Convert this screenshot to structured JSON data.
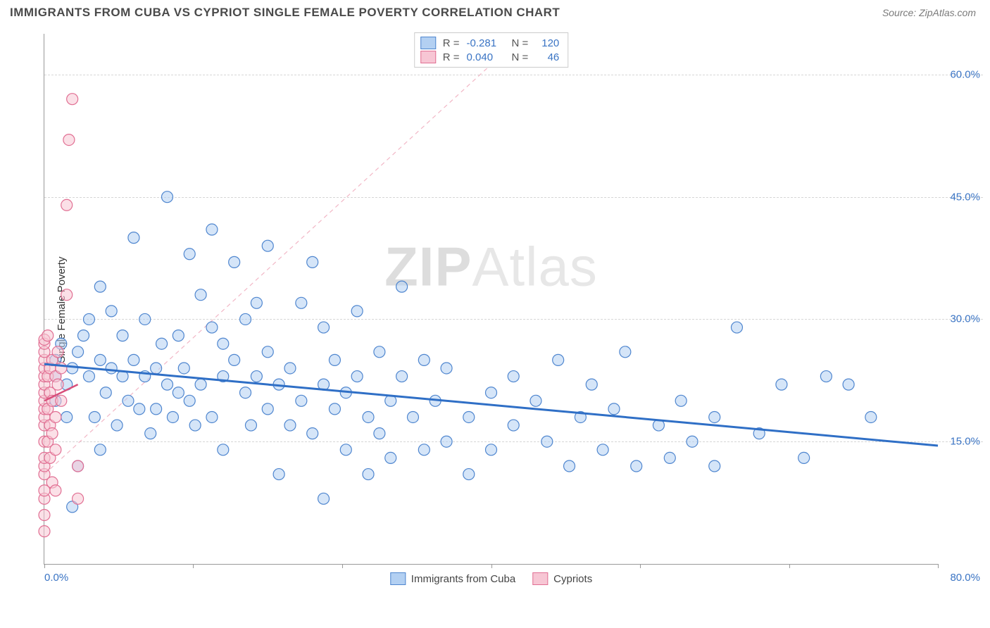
{
  "header": {
    "title": "IMMIGRANTS FROM CUBA VS CYPRIOT SINGLE FEMALE POVERTY CORRELATION CHART",
    "source_prefix": "Source: ",
    "source_name": "ZipAtlas.com"
  },
  "watermark": {
    "part1": "ZIP",
    "part2": "Atlas"
  },
  "chart": {
    "type": "scatter",
    "ylabel": "Single Female Poverty",
    "xlim": [
      0,
      80
    ],
    "ylim": [
      0,
      65
    ],
    "x_tick_positions": [
      0,
      13.33,
      26.67,
      40,
      53.33,
      66.67,
      80
    ],
    "x_tick_labels_shown": {
      "min": "0.0%",
      "max": "80.0%"
    },
    "y_gridlines": [
      15,
      30,
      45,
      60
    ],
    "y_tick_labels": [
      "15.0%",
      "30.0%",
      "45.0%",
      "60.0%"
    ],
    "background_color": "#ffffff",
    "grid_color": "#d6d6d6",
    "axis_color": "#999999",
    "tick_label_color": "#3a74c4",
    "marker_radius": 8,
    "marker_stroke_width": 1.2,
    "series": [
      {
        "id": "cuba",
        "label": "Immigrants from Cuba",
        "fill": "#b3d0f2",
        "stroke": "#4f86cf",
        "fill_opacity": 0.55,
        "R": -0.281,
        "N": 120,
        "trend": {
          "x1": 0,
          "y1": 24.5,
          "x2": 80,
          "y2": 14.5,
          "color": "#2f6fc6",
          "width": 3,
          "dash": "none"
        },
        "extrapolation": {
          "x1": 0,
          "y1": 11,
          "x2": 43,
          "y2": 65,
          "color": "#f2b7c6",
          "width": 1.2,
          "dash": "6,5"
        },
        "points": [
          [
            1,
            23
          ],
          [
            1,
            25
          ],
          [
            1,
            20
          ],
          [
            1.5,
            27
          ],
          [
            2,
            22
          ],
          [
            2,
            18
          ],
          [
            2.5,
            7
          ],
          [
            2.5,
            24
          ],
          [
            3,
            26
          ],
          [
            3,
            12
          ],
          [
            3.5,
            28
          ],
          [
            4,
            23
          ],
          [
            4,
            30
          ],
          [
            4.5,
            18
          ],
          [
            5,
            25
          ],
          [
            5,
            34
          ],
          [
            5,
            14
          ],
          [
            5.5,
            21
          ],
          [
            6,
            24
          ],
          [
            6,
            31
          ],
          [
            6.5,
            17
          ],
          [
            7,
            23
          ],
          [
            7,
            28
          ],
          [
            7.5,
            20
          ],
          [
            8,
            25
          ],
          [
            8,
            40
          ],
          [
            8.5,
            19
          ],
          [
            9,
            23
          ],
          [
            9,
            30
          ],
          [
            9.5,
            16
          ],
          [
            10,
            24
          ],
          [
            10,
            19
          ],
          [
            10.5,
            27
          ],
          [
            11,
            22
          ],
          [
            11,
            45
          ],
          [
            11.5,
            18
          ],
          [
            12,
            28
          ],
          [
            12,
            21
          ],
          [
            12.5,
            24
          ],
          [
            13,
            20
          ],
          [
            13,
            38
          ],
          [
            13.5,
            17
          ],
          [
            14,
            33
          ],
          [
            14,
            22
          ],
          [
            15,
            29
          ],
          [
            15,
            18
          ],
          [
            15,
            41
          ],
          [
            16,
            23
          ],
          [
            16,
            27
          ],
          [
            16,
            14
          ],
          [
            17,
            25
          ],
          [
            17,
            37
          ],
          [
            18,
            21
          ],
          [
            18,
            30
          ],
          [
            18.5,
            17
          ],
          [
            19,
            23
          ],
          [
            19,
            32
          ],
          [
            20,
            19
          ],
          [
            20,
            26
          ],
          [
            20,
            39
          ],
          [
            21,
            22
          ],
          [
            21,
            11
          ],
          [
            22,
            24
          ],
          [
            22,
            17
          ],
          [
            23,
            32
          ],
          [
            23,
            20
          ],
          [
            24,
            37
          ],
          [
            24,
            16
          ],
          [
            25,
            22
          ],
          [
            25,
            29
          ],
          [
            25,
            8
          ],
          [
            26,
            19
          ],
          [
            26,
            25
          ],
          [
            27,
            21
          ],
          [
            27,
            14
          ],
          [
            28,
            23
          ],
          [
            28,
            31
          ],
          [
            29,
            18
          ],
          [
            29,
            11
          ],
          [
            30,
            26
          ],
          [
            30,
            16
          ],
          [
            31,
            20
          ],
          [
            31,
            13
          ],
          [
            32,
            23
          ],
          [
            32,
            34
          ],
          [
            33,
            18
          ],
          [
            34,
            25
          ],
          [
            34,
            14
          ],
          [
            35,
            20
          ],
          [
            36,
            15
          ],
          [
            36,
            24
          ],
          [
            38,
            18
          ],
          [
            38,
            11
          ],
          [
            40,
            21
          ],
          [
            40,
            14
          ],
          [
            42,
            23
          ],
          [
            42,
            17
          ],
          [
            44,
            20
          ],
          [
            45,
            15
          ],
          [
            46,
            25
          ],
          [
            47,
            12
          ],
          [
            48,
            18
          ],
          [
            49,
            22
          ],
          [
            50,
            14
          ],
          [
            51,
            19
          ],
          [
            52,
            26
          ],
          [
            53,
            12
          ],
          [
            55,
            17
          ],
          [
            56,
            13
          ],
          [
            57,
            20
          ],
          [
            58,
            15
          ],
          [
            60,
            18
          ],
          [
            60,
            12
          ],
          [
            62,
            29
          ],
          [
            64,
            16
          ],
          [
            66,
            22
          ],
          [
            68,
            13
          ],
          [
            70,
            23
          ],
          [
            72,
            22
          ],
          [
            74,
            18
          ]
        ]
      },
      {
        "id": "cypriot",
        "label": "Cypriots",
        "fill": "#f7c6d4",
        "stroke": "#e16f93",
        "fill_opacity": 0.55,
        "R": 0.04,
        "N": 46,
        "trend": {
          "x1": 0,
          "y1": 20,
          "x2": 3,
          "y2": 22,
          "color": "#d94f7a",
          "width": 2.5,
          "dash": "none"
        },
        "points": [
          [
            0,
            4
          ],
          [
            0,
            6
          ],
          [
            0,
            8
          ],
          [
            0,
            9
          ],
          [
            0,
            11
          ],
          [
            0,
            12
          ],
          [
            0,
            13
          ],
          [
            0,
            15
          ],
          [
            0,
            17
          ],
          [
            0,
            18
          ],
          [
            0,
            19
          ],
          [
            0,
            20
          ],
          [
            0,
            21
          ],
          [
            0,
            22
          ],
          [
            0,
            23
          ],
          [
            0,
            24
          ],
          [
            0,
            25
          ],
          [
            0,
            26
          ],
          [
            0,
            27
          ],
          [
            0,
            27.5
          ],
          [
            0.3,
            28
          ],
          [
            0.3,
            23
          ],
          [
            0.3,
            19
          ],
          [
            0.3,
            15
          ],
          [
            0.5,
            24
          ],
          [
            0.5,
            21
          ],
          [
            0.5,
            17
          ],
          [
            0.5,
            13
          ],
          [
            0.7,
            25
          ],
          [
            0.7,
            20
          ],
          [
            0.7,
            16
          ],
          [
            0.7,
            10
          ],
          [
            1,
            23
          ],
          [
            1,
            18
          ],
          [
            1,
            14
          ],
          [
            1,
            9
          ],
          [
            1.2,
            22
          ],
          [
            1.2,
            26
          ],
          [
            1.5,
            20
          ],
          [
            1.5,
            24
          ],
          [
            2,
            33
          ],
          [
            2,
            44
          ],
          [
            2.2,
            52
          ],
          [
            2.5,
            57
          ],
          [
            3,
            8
          ],
          [
            3,
            12
          ]
        ]
      }
    ],
    "legend_top": {
      "rows": [
        {
          "swatch_fill": "#b3d0f2",
          "swatch_stroke": "#4f86cf",
          "r_label": "R =",
          "r_value": "-0.281",
          "n_label": "N =",
          "n_value": "120"
        },
        {
          "swatch_fill": "#f7c6d4",
          "swatch_stroke": "#e16f93",
          "r_label": "R =",
          "r_value": "0.040",
          "n_label": "N =",
          "n_value": "46"
        }
      ]
    },
    "legend_bottom": [
      {
        "fill": "#b3d0f2",
        "stroke": "#4f86cf",
        "label": "Immigrants from Cuba"
      },
      {
        "fill": "#f7c6d4",
        "stroke": "#e16f93",
        "label": "Cypriots"
      }
    ]
  }
}
